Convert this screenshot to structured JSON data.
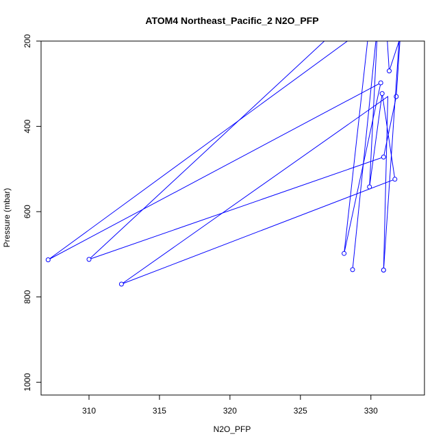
{
  "chart_data": {
    "type": "line",
    "title": "ATOM4 Northeast_Pacific_2 N2O_PFP",
    "xlabel": "N2O_PFP",
    "ylabel": "Pressure (mbar)",
    "xlim": [
      306.6,
      333.8
    ],
    "ylim": [
      1030,
      200
    ],
    "y_reversed": true,
    "x_ticks": [
      310,
      315,
      320,
      325,
      330
    ],
    "x_tick_labels": [
      "310",
      "315",
      "320",
      "325",
      "330"
    ],
    "y_ticks": [
      200,
      400,
      600,
      800,
      1000
    ],
    "y_tick_labels": [
      "200",
      "400",
      "600",
      "800",
      "1000"
    ],
    "grid": false,
    "legend": "none",
    "series_color": "#0000ff",
    "series": [
      {
        "x": [
          332.3,
          331.8,
          330.9,
          310.0,
          326.7
        ],
        "y": [
          80,
          330,
          472,
          712,
          200
        ],
        "point_marker": [
          false,
          true,
          true,
          true,
          false
        ]
      },
      {
        "x": [
          330.3,
          328.1,
          330.7,
          307.1,
          330.4
        ],
        "y": [
          40,
          698,
          298,
          713,
          150
        ],
        "point_marker": [
          false,
          true,
          true,
          true,
          false
        ]
      },
      {
        "x": [
          330.5,
          329.9,
          330.8,
          331.7,
          312.3,
          331.2,
          330.9
        ],
        "y": [
          150,
          542,
          323,
          524,
          770,
          330,
          737
        ],
        "point_marker": [
          false,
          true,
          true,
          true,
          true,
          false,
          true
        ]
      },
      {
        "x": [
          330.9,
          331.3,
          332.0,
          330.9
        ],
        "y": [
          60,
          270,
          200,
          737
        ],
        "point_marker": [
          false,
          true,
          false,
          true
        ]
      },
      {
        "x": [
          330.5,
          328.7
        ],
        "y": [
          150,
          736
        ],
        "point_marker": [
          false,
          true
        ]
      }
    ]
  }
}
